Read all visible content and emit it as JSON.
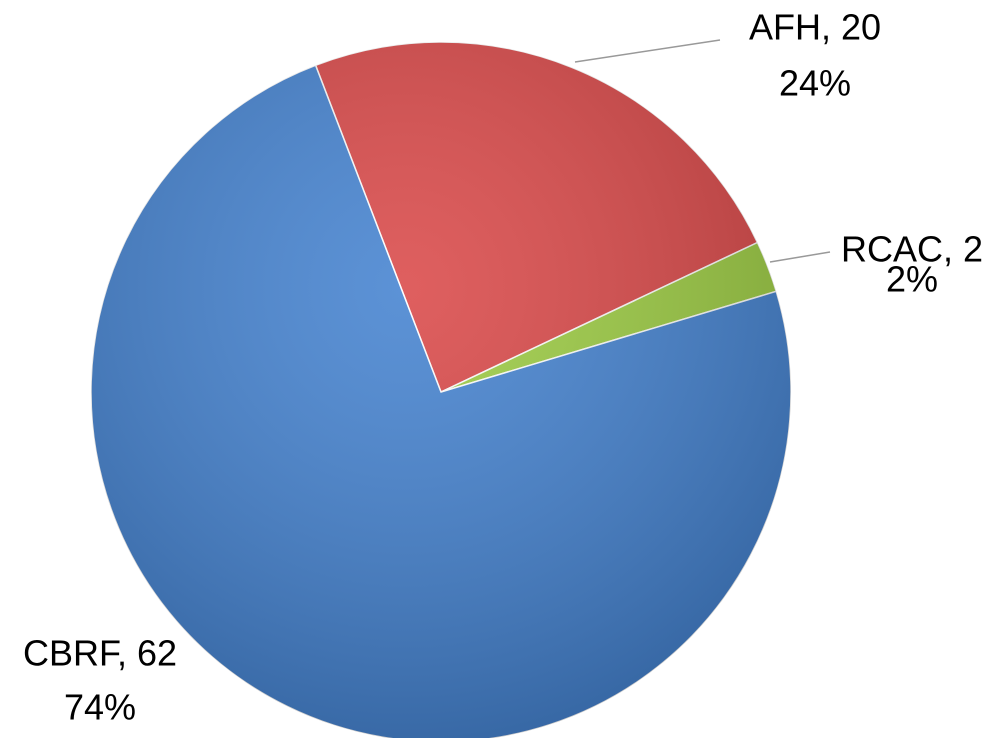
{
  "chart_data": {
    "type": "pie",
    "values": [
      20,
      2,
      62
    ],
    "value_labels": [
      "AFH, 20",
      "RCAC, 2",
      "CBRF, 62"
    ],
    "percents": [
      24,
      2,
      74
    ],
    "percent_labels": [
      "24%",
      "2%",
      "74%"
    ],
    "colors": [
      "#d94343",
      "#9acb3d",
      "#3f7fcf"
    ]
  }
}
